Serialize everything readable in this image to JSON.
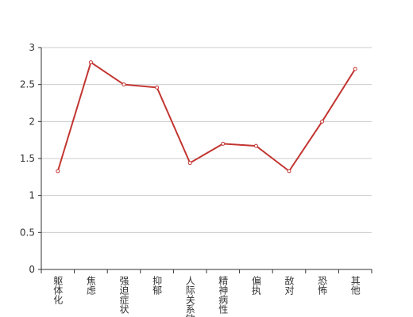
{
  "chart_data": {
    "type": "line",
    "categories": [
      "躯体化",
      "焦虑",
      "强迫症状",
      "抑郁",
      "人际关系敏感",
      "精神病性",
      "偏执",
      "敌对",
      "恐怖",
      "其他"
    ],
    "values": [
      1.33,
      2.8,
      2.5,
      2.46,
      1.44,
      1.7,
      1.67,
      1.33,
      2.0,
      2.71
    ],
    "color": "#c23531",
    "ylim": [
      0,
      3
    ],
    "yticks": [
      0,
      0.5,
      1,
      1.5,
      2,
      2.5,
      3
    ],
    "grid": true
  }
}
